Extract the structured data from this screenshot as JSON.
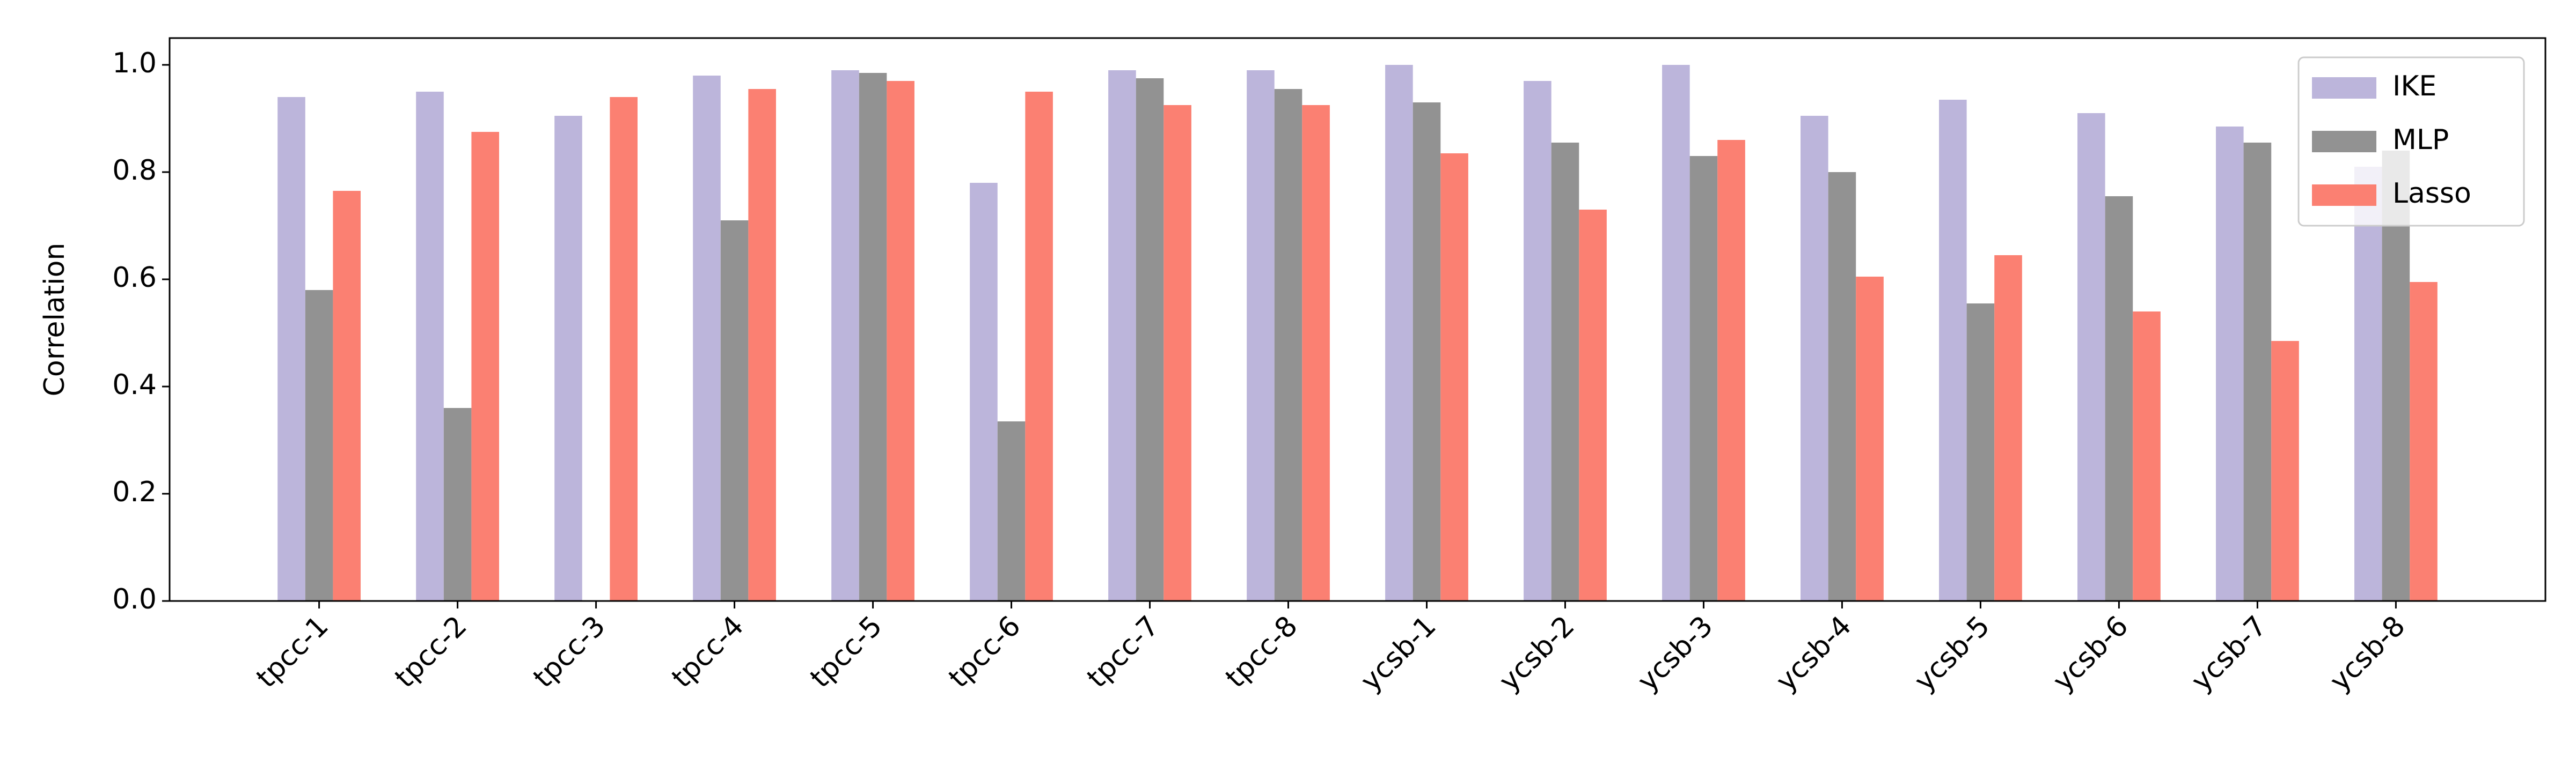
{
  "chart_data": {
    "type": "bar",
    "y_label": "Correlation",
    "categories": [
      "tpcc-1",
      "tpcc-2",
      "tpcc-3",
      "tpcc-4",
      "tpcc-5",
      "tpcc-6",
      "tpcc-7",
      "tpcc-8",
      "ycsb-1",
      "ycsb-2",
      "ycsb-3",
      "ycsb-4",
      "ycsb-5",
      "ycsb-6",
      "ycsb-7",
      "ycsb-8"
    ],
    "series": [
      {
        "name": "IKE",
        "color": "#bcb5db",
        "values": [
          0.94,
          0.95,
          0.905,
          0.98,
          0.99,
          0.78,
          0.99,
          0.99,
          1.0,
          0.97,
          1.0,
          0.905,
          0.935,
          0.91,
          0.885,
          0.81
        ]
      },
      {
        "name": "MLP",
        "color": "#929292",
        "values": [
          0.58,
          0.36,
          0,
          0.71,
          0.985,
          0.335,
          0.975,
          0.955,
          0.93,
          0.855,
          0.83,
          0.8,
          0.555,
          0.755,
          0.855,
          0.84
        ]
      },
      {
        "name": "Lasso",
        "color": "#fb8072",
        "values": [
          0.765,
          0.875,
          0.94,
          0.955,
          0.97,
          0.95,
          0.925,
          0.925,
          0.835,
          0.73,
          0.86,
          0.605,
          0.645,
          0.54,
          0.485,
          0.595
        ]
      }
    ],
    "ylim": [
      0,
      1.05
    ],
    "yticks": [
      {
        "value": 0,
        "label": "0.0"
      },
      {
        "value": 0.2,
        "label": "0.2"
      },
      {
        "value": 0.4,
        "label": "0.4"
      },
      {
        "value": 0.6,
        "label": "0.6"
      },
      {
        "value": 0.8,
        "label": "0.8"
      },
      {
        "value": 1.0,
        "label": "1.0"
      }
    ],
    "legend": "upper right"
  }
}
